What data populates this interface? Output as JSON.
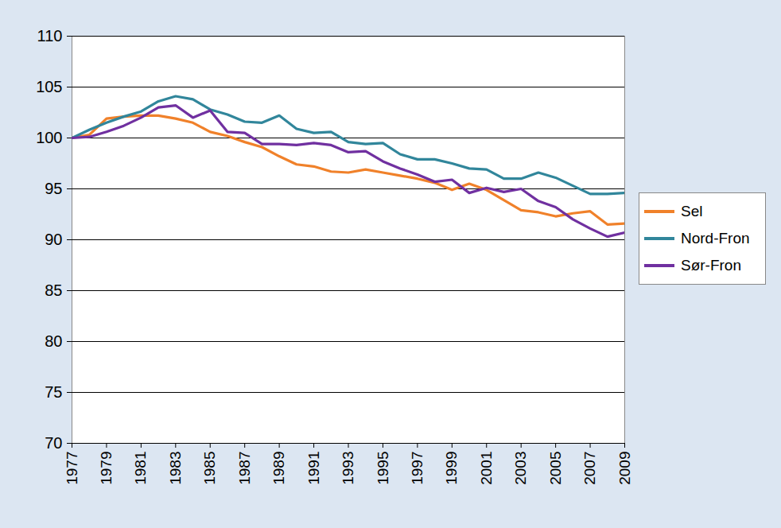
{
  "chart_data": {
    "type": "line",
    "x": [
      1977,
      1978,
      1979,
      1980,
      1981,
      1982,
      1983,
      1984,
      1985,
      1986,
      1987,
      1988,
      1989,
      1990,
      1991,
      1992,
      1993,
      1994,
      1995,
      1996,
      1997,
      1998,
      1999,
      2000,
      2001,
      2002,
      2003,
      2004,
      2005,
      2006,
      2007,
      2008,
      2009
    ],
    "series": [
      {
        "name": "Sel",
        "color": "#f0812a",
        "values": [
          100,
          100.3,
          101.9,
          102.1,
          102.2,
          102.2,
          101.9,
          101.5,
          100.6,
          100.2,
          99.6,
          99.1,
          98.2,
          97.4,
          97.2,
          96.7,
          96.6,
          96.9,
          96.6,
          96.3,
          96.0,
          95.6,
          94.9,
          95.5,
          94.9,
          93.9,
          92.9,
          92.7,
          92.3,
          92.6,
          92.8,
          91.5,
          91.6
        ]
      },
      {
        "name": "Nord-Fron",
        "color": "#31869b",
        "values": [
          100,
          100.8,
          101.5,
          102.1,
          102.6,
          103.6,
          104.1,
          103.8,
          102.8,
          102.3,
          101.6,
          101.5,
          102.2,
          100.9,
          100.5,
          100.6,
          99.6,
          99.4,
          99.5,
          98.4,
          97.9,
          97.9,
          97.5,
          97.0,
          96.9,
          96.0,
          96.0,
          96.6,
          96.1,
          95.3,
          94.5,
          94.5,
          94.6
        ]
      },
      {
        "name": "Sør-Fron",
        "color": "#7030a0",
        "values": [
          100,
          100.1,
          100.6,
          101.2,
          102.0,
          103.0,
          103.2,
          102.0,
          102.7,
          100.6,
          100.5,
          99.4,
          99.4,
          99.3,
          99.5,
          99.3,
          98.6,
          98.7,
          97.7,
          97.0,
          96.4,
          95.7,
          95.9,
          94.6,
          95.1,
          94.7,
          95.0,
          93.8,
          93.2,
          92.0,
          91.1,
          90.3,
          90.7
        ]
      }
    ],
    "xlim": [
      1977,
      2009
    ],
    "xticks": [
      1977,
      1979,
      1981,
      1983,
      1985,
      1987,
      1989,
      1991,
      1993,
      1995,
      1997,
      1999,
      2001,
      2003,
      2005,
      2007,
      2009
    ],
    "ylim": [
      70,
      110
    ],
    "yticks": [
      70,
      75,
      80,
      85,
      90,
      95,
      100,
      105,
      110
    ],
    "grid": true,
    "legend": "right"
  }
}
